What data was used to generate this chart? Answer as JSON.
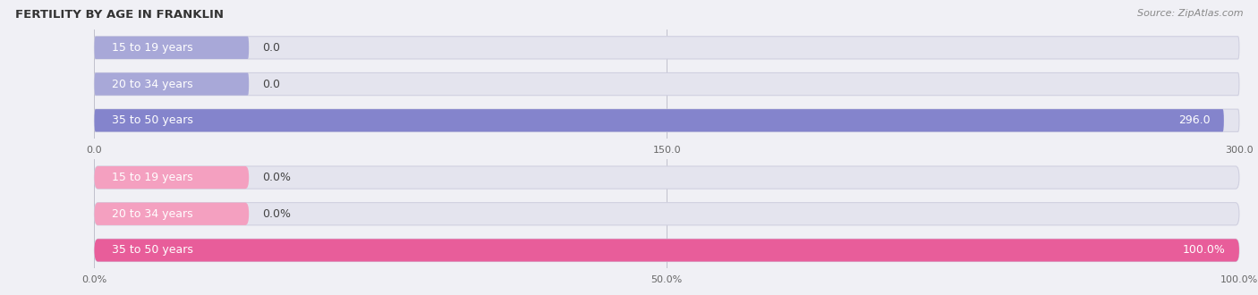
{
  "title": "FERTILITY BY AGE IN FRANKLIN",
  "source": "Source: ZipAtlas.com",
  "top_chart": {
    "categories": [
      "15 to 19 years",
      "20 to 34 years",
      "35 to 50 years"
    ],
    "values": [
      0.0,
      0.0,
      296.0
    ],
    "bar_color_main": "#8484cc",
    "bar_color_stub": "#a8a8d8",
    "xlim": [
      0,
      300
    ],
    "xticks": [
      0.0,
      150.0,
      300.0
    ],
    "xtick_labels": [
      "0.0",
      "150.0",
      "300.0"
    ],
    "value_labels": [
      "0.0",
      "0.0",
      "296.0"
    ]
  },
  "bottom_chart": {
    "categories": [
      "15 to 19 years",
      "20 to 34 years",
      "35 to 50 years"
    ],
    "values": [
      0.0,
      0.0,
      100.0
    ],
    "bar_color_main": "#e85d9a",
    "bar_color_stub": "#f4a0c0",
    "xlim": [
      0,
      100
    ],
    "xticks": [
      0.0,
      50.0,
      100.0
    ],
    "xtick_labels": [
      "0.0%",
      "50.0%",
      "100.0%"
    ],
    "value_labels": [
      "0.0%",
      "0.0%",
      "100.0%"
    ]
  },
  "fig_bg_color": "#f0f0f5",
  "bar_bg_color": "#e4e4ee",
  "bar_bg_outline": "#d0d0e0",
  "bar_height": 0.62,
  "label_fontsize": 9,
  "tick_fontsize": 8,
  "title_fontsize": 9.5,
  "source_fontsize": 8
}
